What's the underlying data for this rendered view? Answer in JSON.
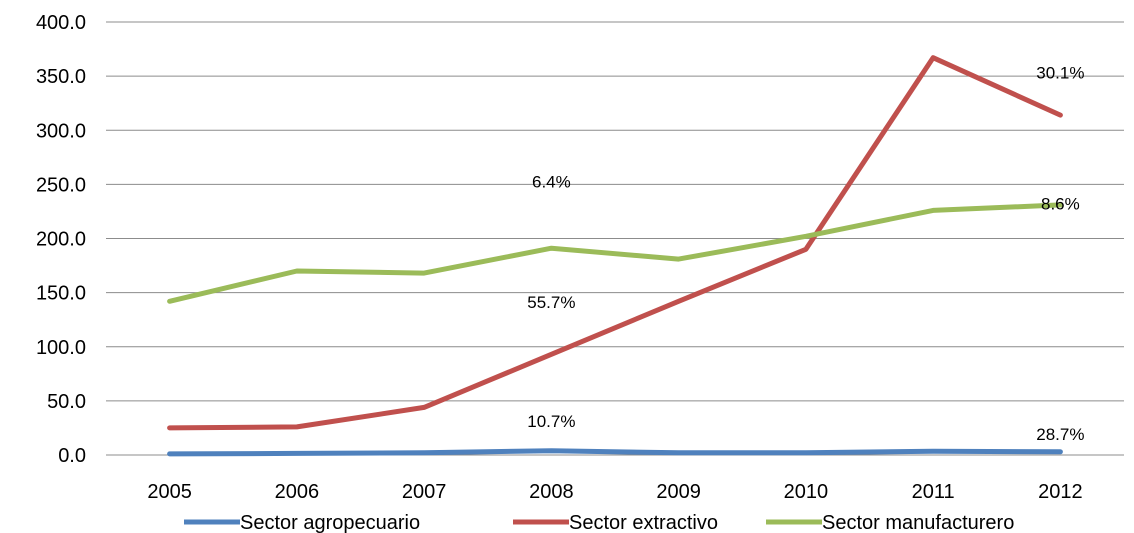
{
  "chart_data": {
    "type": "line",
    "title": "",
    "xlabel": "",
    "ylabel": "",
    "x": [
      "2005",
      "2006",
      "2007",
      "2008",
      "2009",
      "2010",
      "2011",
      "2012"
    ],
    "ylim": [
      0,
      400
    ],
    "yticks": [
      "0.0",
      "50.0",
      "100.0",
      "150.0",
      "200.0",
      "250.0",
      "300.0",
      "350.0",
      "400.0"
    ],
    "grid": true,
    "legend_position": "bottom",
    "series": [
      {
        "name": "Sector agropecuario",
        "color": "#4f81bd",
        "values": [
          1.0,
          1.5,
          2.0,
          4.0,
          2.0,
          2.0,
          3.5,
          3.0
        ]
      },
      {
        "name": "Sector extractivo",
        "color": "#c0504d",
        "values": [
          25,
          26,
          44,
          93,
          142,
          190,
          367,
          314
        ]
      },
      {
        "name": "Sector manufacturero",
        "color": "#9bbb59",
        "values": [
          142,
          170,
          168,
          191,
          181,
          202,
          226,
          231
        ]
      }
    ],
    "annotations": [
      {
        "text": "6.4%",
        "x": "2008",
        "y": 247
      },
      {
        "text": "55.7%",
        "x": "2008",
        "y": 136
      },
      {
        "text": "10.7%",
        "x": "2008",
        "y": 26
      },
      {
        "text": "30.1%",
        "x": "2012",
        "y": 348
      },
      {
        "text": "8.6%",
        "x": "2012",
        "y": 227
      },
      {
        "text": "28.7%",
        "x": "2012",
        "y": 14
      }
    ]
  }
}
